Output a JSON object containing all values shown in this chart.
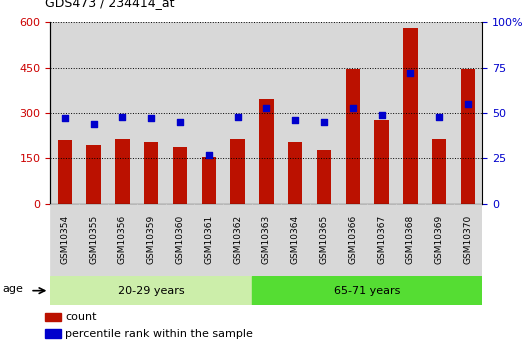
{
  "title": "GDS473 / 234414_at",
  "samples": [
    "GSM10354",
    "GSM10355",
    "GSM10356",
    "GSM10359",
    "GSM10360",
    "GSM10361",
    "GSM10362",
    "GSM10363",
    "GSM10364",
    "GSM10365",
    "GSM10366",
    "GSM10367",
    "GSM10368",
    "GSM10369",
    "GSM10370"
  ],
  "counts": [
    210,
    193,
    215,
    205,
    188,
    155,
    215,
    345,
    205,
    178,
    445,
    278,
    580,
    213,
    445
  ],
  "percentiles": [
    47,
    44,
    48,
    47,
    45,
    27,
    48,
    53,
    46,
    45,
    53,
    49,
    72,
    48,
    55
  ],
  "group1_label": "20-29 years",
  "group2_label": "65-71 years",
  "group1_count": 7,
  "age_label": "age",
  "bar_color": "#bb1100",
  "pct_color": "#0000cc",
  "group1_bg": "#cceeaa",
  "group2_bg": "#55dd33",
  "col_bg": "#d8d8d8",
  "left_yticks": [
    0,
    150,
    300,
    450,
    600
  ],
  "right_ytick_vals": [
    0,
    25,
    50,
    75,
    100
  ],
  "right_ytick_labels": [
    "0",
    "25",
    "50",
    "75",
    "100%"
  ],
  "ylim_left": [
    0,
    600
  ],
  "ylim_right": [
    0,
    100
  ],
  "legend_count": "count",
  "legend_pct": "percentile rank within the sample",
  "title_color": "#000000",
  "left_tick_color": "#cc0000",
  "right_tick_color": "#0000cc"
}
